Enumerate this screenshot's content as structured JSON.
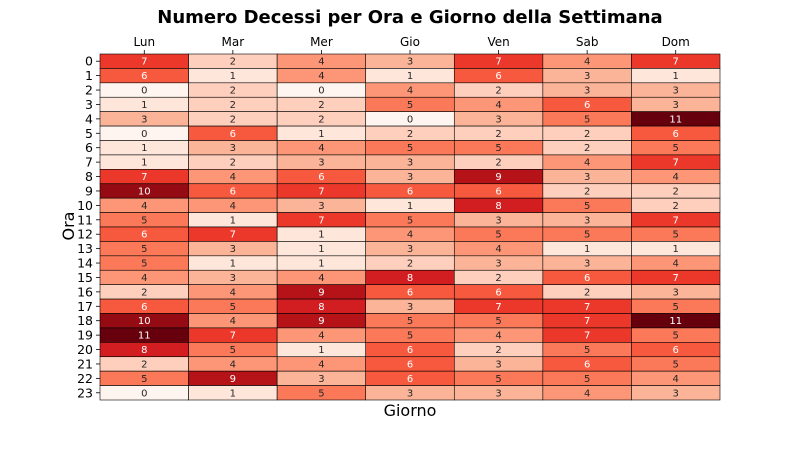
{
  "chart_data": {
    "type": "heatmap",
    "title": "Numero Decessi per Ora e Giorno della Settimana",
    "xlabel": "Giorno",
    "ylabel": "Ora",
    "x_position": "top",
    "columns": [
      "Lun",
      "Mar",
      "Mer",
      "Gio",
      "Ven",
      "Sab",
      "Dom"
    ],
    "rows": [
      "0",
      "1",
      "2",
      "3",
      "4",
      "5",
      "6",
      "7",
      "8",
      "9",
      "10",
      "11",
      "12",
      "13",
      "14",
      "15",
      "16",
      "17",
      "18",
      "19",
      "20",
      "21",
      "22",
      "23"
    ],
    "values": [
      [
        7,
        2,
        4,
        3,
        7,
        4,
        7
      ],
      [
        6,
        1,
        4,
        1,
        6,
        3,
        1
      ],
      [
        0,
        2,
        0,
        4,
        2,
        3,
        3
      ],
      [
        1,
        2,
        2,
        5,
        4,
        6,
        3
      ],
      [
        3,
        2,
        2,
        0,
        3,
        5,
        11
      ],
      [
        0,
        6,
        1,
        2,
        2,
        2,
        6
      ],
      [
        1,
        3,
        4,
        5,
        5,
        2,
        5
      ],
      [
        1,
        2,
        3,
        3,
        2,
        4,
        7
      ],
      [
        7,
        4,
        6,
        3,
        9,
        3,
        4
      ],
      [
        10,
        6,
        7,
        6,
        6,
        2,
        2
      ],
      [
        4,
        4,
        3,
        1,
        8,
        5,
        2
      ],
      [
        5,
        1,
        7,
        5,
        3,
        3,
        7
      ],
      [
        6,
        7,
        1,
        4,
        5,
        5,
        5
      ],
      [
        5,
        3,
        1,
        3,
        4,
        1,
        1
      ],
      [
        5,
        1,
        1,
        2,
        3,
        3,
        4
      ],
      [
        4,
        3,
        4,
        8,
        2,
        6,
        7
      ],
      [
        2,
        4,
        9,
        6,
        6,
        2,
        3
      ],
      [
        6,
        5,
        8,
        3,
        7,
        7,
        5
      ],
      [
        10,
        4,
        9,
        5,
        5,
        7,
        11
      ],
      [
        11,
        7,
        4,
        5,
        4,
        7,
        5
      ],
      [
        8,
        5,
        1,
        6,
        2,
        5,
        6
      ],
      [
        2,
        4,
        4,
        6,
        3,
        6,
        5
      ],
      [
        5,
        9,
        3,
        6,
        5,
        5,
        4
      ],
      [
        0,
        1,
        5,
        3,
        3,
        4,
        3
      ]
    ],
    "vmin": 0,
    "vmax": 11,
    "colormap": "Reds",
    "cell_border_color": "#000000",
    "annotations": true,
    "colorbar": false
  }
}
